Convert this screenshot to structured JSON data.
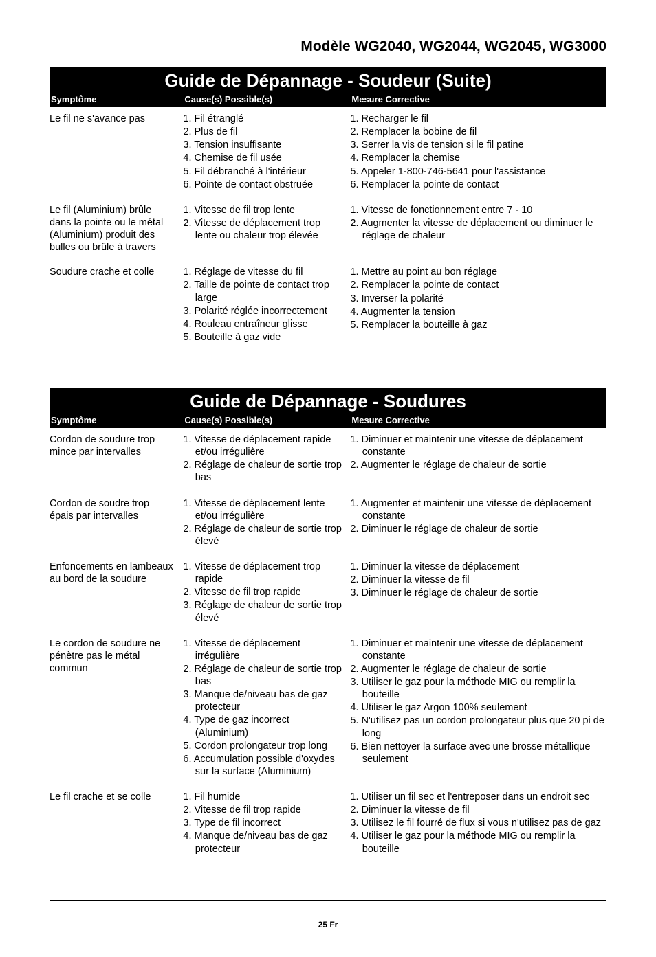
{
  "header": {
    "model_line": "Modèle WG2040, WG2044, WG2045, WG3000"
  },
  "sections": [
    {
      "title": "Guide de Dépannage - Soudeur (Suite)",
      "columns": {
        "sym": "Symptôme",
        "cause": "Cause(s) Possible(s)",
        "corr": "Mesure Corrective"
      },
      "rows": [
        {
          "symptom": "Le fil ne s'avance pas",
          "causes": [
            "1. Fil étranglé",
            "2. Plus de fil",
            "3. Tension insuffisante",
            "4. Chemise de fil usée",
            "5. Fil débranché à l'intérieur",
            "6. Pointe de contact obstruée"
          ],
          "corrections": [
            "1. Recharger le fil",
            "2. Remplacer la bobine de fil",
            "3. Serrer la vis de tension si le fil patine",
            "4. Remplacer la chemise",
            "5. Appeler 1-800-746-5641 pour l'assistance",
            "6. Remplacer la pointe de contact"
          ]
        },
        {
          "symptom": "Le fil (Aluminium) brûle dans la pointe ou le métal (Aluminium) produit des bulles ou brûle à travers",
          "causes": [
            "1. Vitesse de fil trop lente",
            "2. Vitesse de déplacement trop lente ou chaleur trop élevée"
          ],
          "corrections": [
            "1. Vitesse de fonctionnement entre 7 - 10",
            "2. Augmenter la vitesse de déplacement ou diminuer le réglage de chaleur"
          ]
        },
        {
          "symptom": "Soudure crache et colle",
          "causes": [
            "1. Réglage de vitesse du fil",
            "2. Taille de pointe de contact trop large",
            "3. Polarité réglée incorrectement",
            "4. Rouleau entraîneur glisse",
            "5. Bouteille à gaz vide"
          ],
          "corrections": [
            "1. Mettre au point au bon réglage",
            "2. Remplacer la pointe de contact",
            "3. Inverser la polarité",
            "4. Augmenter la tension",
            "5. Remplacer la bouteille à gaz"
          ]
        }
      ]
    },
    {
      "title": "Guide de Dépannage - Soudures",
      "columns": {
        "sym": "Symptôme",
        "cause": "Cause(s) Possible(s)",
        "corr": "Mesure Corrective"
      },
      "rows": [
        {
          "symptom": "Cordon de soudure trop mince par intervalles",
          "causes": [
            "1. Vitesse de déplacement rapide et/ou irrégulière",
            "2. Réglage de chaleur de sortie trop bas"
          ],
          "corrections": [
            "1. Diminuer et maintenir une vitesse de déplacement constante",
            "2. Augmenter le réglage de chaleur de sortie"
          ]
        },
        {
          "symptom": "Cordon de soudre trop épais par intervalles",
          "causes": [
            "1. Vitesse de déplacement lente et/ou irrégulière",
            "2. Réglage de chaleur de sortie trop élevé"
          ],
          "corrections": [
            "1. Augmenter et maintenir une vitesse de déplacement constante",
            "2. Diminuer le réglage de chaleur de sortie"
          ]
        },
        {
          "symptom": "Enfoncements en lambeaux au bord de la soudure",
          "causes": [
            "1. Vitesse de déplacement trop rapide",
            "2. Vitesse de fil trop rapide",
            "3. Réglage de chaleur de sortie trop élevé"
          ],
          "corrections": [
            "1. Diminuer la vitesse de déplacement",
            "2. Diminuer la vitesse de fil",
            "3. Diminuer le réglage de chaleur de sortie"
          ]
        },
        {
          "symptom": "Le cordon de soudure ne pénètre pas le métal commun",
          "causes": [
            "1. Vitesse de déplacement irrégulière",
            "2. Réglage de chaleur de sortie trop bas",
            "3. Manque de/niveau bas de gaz protecteur",
            "4. Type de gaz incorrect (Aluminium)",
            "5. Cordon prolongateur trop long",
            "6. Accumulation possible d'oxydes sur la surface (Aluminium)"
          ],
          "corrections": [
            "1. Diminuer et maintenir une vitesse de déplacement constante",
            "2. Augmenter le réglage de chaleur de sortie",
            "3. Utiliser le gaz pour la méthode  MIG ou remplir la bouteille",
            "4. Utiliser le gaz Argon 100% seulement",
            "5. N'utilisez pas un cordon prolongateur plus que 20 pi de long",
            "6. Bien nettoyer la surface avec une brosse métallique seulement"
          ]
        },
        {
          "symptom": "Le fil crache et se colle",
          "causes": [
            "1. Fil humide",
            "2. Vitesse de fil trop rapide",
            "3. Type de fil incorrect",
            "4. Manque de/niveau bas de gaz protecteur"
          ],
          "corrections": [
            "1. Utiliser un fil sec et l'entreposer dans un endroit sec",
            "2. Diminuer la vitesse de fil",
            "3. Utilisez le fil fourré de flux si vous n'utilisez pas de gaz",
            "4. Utiliser le gaz pour la méthode  MIG ou remplir la bouteille"
          ]
        }
      ]
    }
  ],
  "footer": {
    "page": "25 Fr"
  },
  "style": {
    "colors": {
      "bg": "#ffffff",
      "text": "#000000",
      "bar_bg": "#000000",
      "bar_text": "#ffffff"
    },
    "fonts": {
      "body_pt": 14.5,
      "title_pt": 26,
      "model_pt": 21,
      "colhdr_pt": 13,
      "footer_pt": 12
    }
  }
}
